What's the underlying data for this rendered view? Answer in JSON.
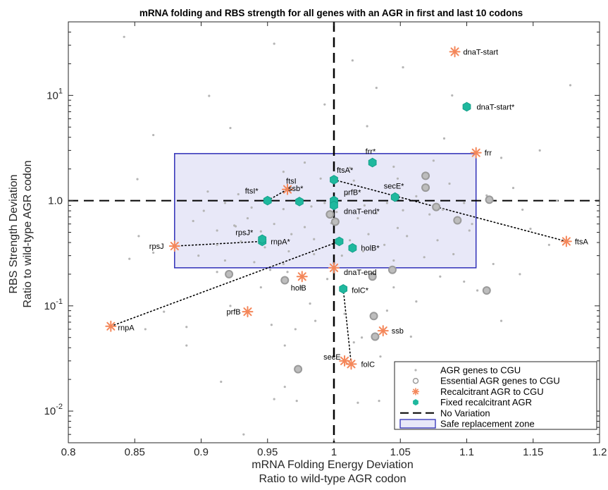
{
  "chart_data": {
    "type": "scatter",
    "title": "mRNA folding and RBS strength for all genes with an AGR in first and last 10 codons",
    "xlabel": [
      "mRNA Folding Energy Deviation",
      "Ratio to wild-type AGR codon"
    ],
    "ylabel": [
      "RBS Strength Deviation",
      "Ratio to wild-type AGR codon"
    ],
    "xlim": [
      0.8,
      1.2
    ],
    "ylim": [
      0.005,
      50
    ],
    "yscale": "log",
    "xticks": [
      0.8,
      0.85,
      0.9,
      0.95,
      1.0,
      1.05,
      1.1,
      1.15,
      1.2
    ],
    "xtick_labels": [
      "0.8",
      "0.85",
      "0.9",
      "0.95",
      "1",
      "1.05",
      "1.1",
      "1.15",
      "1.2"
    ],
    "yticks": [
      {
        "value": 0.01,
        "base": "10",
        "exp": "-2"
      },
      {
        "value": 0.1,
        "base": "10",
        "exp": "-1"
      },
      {
        "value": 1,
        "base": "1.0",
        "exp": ""
      },
      {
        "value": 10,
        "base": "10",
        "exp": "1"
      }
    ],
    "safe_zone": {
      "x": [
        0.88,
        1.107
      ],
      "y": [
        0.23,
        2.8
      ]
    },
    "reference_lines": {
      "x": 1.0,
      "y": 1.0
    },
    "colors": {
      "agr": "#b5b5b5",
      "essential": "#a6a6a6",
      "recalcitrant": "#f4875a",
      "fixed": "#1fb89e",
      "zone_fill": "#e8e8f8",
      "zone_edge": "#2f2fb8"
    },
    "series": [
      {
        "key": "agr",
        "name": "AGR genes to CGU",
        "marker": "dot",
        "points": [
          [
            0.842,
            36
          ],
          [
            0.955,
            31
          ],
          [
            0.906,
            9.9
          ],
          [
            0.922,
            4.9
          ],
          [
            0.864,
            4.2
          ],
          [
            1.025,
            5.1
          ],
          [
            0.852,
            1.6
          ],
          [
            0.853,
            0.46
          ],
          [
            0.846,
            0.28
          ],
          [
            0.864,
            0.32
          ],
          [
            0.872,
            0.088
          ],
          [
            0.858,
            0.06
          ],
          [
            0.889,
            0.063
          ],
          [
            0.915,
            0.019
          ],
          [
            0.889,
            0.042
          ],
          [
            0.932,
            0.006
          ],
          [
            0.926,
            0.57
          ],
          [
            0.922,
            0.1
          ],
          [
            0.963,
            0.017
          ],
          [
            0.955,
            0.013
          ],
          [
            0.972,
            0.0125
          ],
          [
            0.963,
            0.042
          ],
          [
            0.953,
            0.066
          ],
          [
            0.971,
            0.06
          ],
          [
            1.015,
            0.045
          ],
          [
            1.021,
            0.05
          ],
          [
            1.034,
            0.0125
          ],
          [
            1.018,
            0.012
          ],
          [
            1.047,
            0.019
          ],
          [
            1.035,
            0.033
          ],
          [
            1.058,
            0.051
          ],
          [
            1.062,
            0.022
          ],
          [
            1.047,
            0.012
          ],
          [
            1.072,
            0.0125
          ],
          [
            1.101,
            0.0125
          ],
          [
            1.128,
            0.01
          ],
          [
            1.098,
            0.17
          ],
          [
            1.126,
            0.072
          ],
          [
            1.104,
            0.6
          ],
          [
            1.135,
            1.32
          ],
          [
            1.148,
            0.54
          ],
          [
            1.162,
            0.38
          ],
          [
            1.178,
            12.5
          ],
          [
            1.126,
            2.55
          ],
          [
            1.155,
            3.0
          ],
          [
            1.089,
            10
          ],
          [
            1.052,
            18.5
          ],
          [
            1.014,
            21.5
          ],
          [
            1.032,
            11.8
          ],
          [
            0.993,
            8.2
          ],
          [
            1.083,
            3.9
          ],
          [
            1.075,
            2.4
          ],
          [
            1.045,
            2.1
          ],
          [
            1.012,
            2.05
          ],
          [
            0.978,
            2.3
          ],
          [
            0.962,
            1.88
          ],
          [
            0.99,
            1.62
          ],
          [
            1.015,
            1.55
          ],
          [
            1.048,
            1.62
          ],
          [
            1.087,
            1.45
          ],
          [
            1.062,
            1.1
          ],
          [
            1.04,
            0.95
          ],
          [
            1.01,
            1.15
          ],
          [
            0.993,
            0.95
          ],
          [
            0.983,
            0.88
          ],
          [
            0.962,
            0.83
          ],
          [
            0.938,
            0.86
          ],
          [
            0.918,
            0.95
          ],
          [
            0.902,
            0.8
          ],
          [
            0.894,
            0.64
          ],
          [
            0.912,
            0.52
          ],
          [
            0.935,
            0.68
          ],
          [
            0.955,
            0.6
          ],
          [
            0.978,
            0.56
          ],
          [
            0.998,
            0.61
          ],
          [
            1.018,
            0.68
          ],
          [
            1.032,
            0.76
          ],
          [
            1.052,
            0.81
          ],
          [
            1.072,
            0.74
          ],
          [
            1.092,
            0.62
          ],
          [
            1.102,
            0.52
          ],
          [
            1.078,
            0.42
          ],
          [
            1.055,
            0.46
          ],
          [
            1.038,
            0.38
          ],
          [
            1.022,
            0.33
          ],
          [
            1.006,
            0.3
          ],
          [
            0.985,
            0.31
          ],
          [
            0.966,
            0.33
          ],
          [
            0.948,
            0.36
          ],
          [
            0.93,
            0.41
          ],
          [
            0.912,
            0.38
          ],
          [
            0.898,
            0.3
          ],
          [
            0.918,
            0.27
          ],
          [
            0.94,
            0.26
          ],
          [
            0.962,
            0.25
          ],
          [
            0.985,
            0.43
          ],
          [
            1.045,
            0.27
          ],
          [
            1.068,
            0.29
          ],
          [
            1.09,
            0.31
          ],
          [
            1.12,
            0.25
          ],
          [
            1.14,
            0.2
          ],
          [
            1.108,
            0.14
          ],
          [
            1.012,
            0.42
          ],
          [
            1.026,
            0.48
          ],
          [
            1.048,
            0.55
          ],
          [
            0.968,
            0.48
          ],
          [
            0.945,
            0.51
          ],
          [
            0.925,
            0.58
          ],
          [
            1.002,
            0.78
          ],
          [
            1.023,
            0.9
          ],
          [
            0.972,
            1.0
          ],
          [
            0.952,
            1.05
          ],
          [
            0.928,
            1.15
          ],
          [
            0.905,
            1.22
          ],
          [
            1.098,
            0.95
          ],
          [
            1.082,
            0.82
          ],
          [
            1.115,
            1.12
          ],
          [
            1.142,
            0.82
          ],
          [
            1.168,
            1.0
          ],
          [
            0.995,
            0.18
          ],
          [
            0.975,
            0.15
          ],
          [
            1.045,
            0.15
          ],
          [
            1.062,
            0.11
          ],
          [
            0.945,
            0.15
          ],
          [
            1.08,
            0.19
          ],
          [
            0.952,
            0.22
          ],
          [
            1.008,
            0.084
          ],
          [
            0.986,
            0.072
          ],
          [
            1.04,
            0.09
          ],
          [
            0.982,
            0.105
          ],
          [
            0.912,
            0.21
          ],
          [
            0.965,
            0.21
          ]
        ]
      },
      {
        "key": "essential",
        "name": "Essential AGR genes to CGU",
        "marker": "circle",
        "points": [
          [
            1.069,
            1.72
          ],
          [
            1.069,
            1.33
          ],
          [
            1.117,
            1.02
          ],
          [
            1.077,
            0.87
          ],
          [
            1.093,
            0.65
          ],
          [
            1.001,
            0.63
          ],
          [
            0.997,
            0.74
          ],
          [
            1.115,
            0.14
          ],
          [
            1.044,
            0.22
          ],
          [
            0.921,
            0.2
          ],
          [
            0.963,
            0.175
          ],
          [
            1.029,
            0.19
          ],
          [
            1.03,
            0.08
          ],
          [
            1.031,
            0.051
          ],
          [
            0.973,
            0.025
          ]
        ]
      },
      {
        "key": "recalcitrant",
        "name": "Recalcitrant AGR to CGU",
        "marker": "asterisk",
        "points": [
          {
            "x": 1.091,
            "y": 26,
            "label": "dnaT-start",
            "dx": 12,
            "dy": 4
          },
          {
            "x": 1.107,
            "y": 2.85,
            "label": "frr",
            "dx": 12,
            "dy": 4
          },
          {
            "x": 0.965,
            "y": 1.28,
            "label": "ftsI",
            "dx": -2,
            "dy": -8
          },
          {
            "x": 1.175,
            "y": 0.41,
            "label": "ftsA",
            "dx": 12,
            "dy": 4
          },
          {
            "x": 0.88,
            "y": 0.37,
            "label": "rpsJ",
            "dx": -36,
            "dy": 4
          },
          {
            "x": 1.0,
            "y": 0.23,
            "label": "dnaT-end",
            "dx": 14,
            "dy": 10
          },
          {
            "x": 0.976,
            "y": 0.19,
            "label": "holB",
            "dx": -16,
            "dy": 20
          },
          {
            "x": 0.935,
            "y": 0.088,
            "label": "prfB",
            "dx": -30,
            "dy": 4
          },
          {
            "x": 0.832,
            "y": 0.064,
            "label": "rnpA",
            "dx": 10,
            "dy": 6
          },
          {
            "x": 1.037,
            "y": 0.058,
            "label": "ssb",
            "dx": 12,
            "dy": 4
          },
          {
            "x": 1.013,
            "y": 0.028,
            "label": "folC",
            "dx": 14,
            "dy": 4
          },
          {
            "x": 1.008,
            "y": 0.03,
            "label": "secE",
            "dx": -30,
            "dy": -2
          }
        ]
      },
      {
        "key": "fixed",
        "name": "Fixed recalcitrant AGR",
        "marker": "hexagon",
        "points": [
          {
            "x": 1.1,
            "y": 7.8,
            "label": "dnaT-start*",
            "dx": 14,
            "dy": 4
          },
          {
            "x": 1.029,
            "y": 2.3,
            "label": "frr*",
            "dx": -10,
            "dy": -12
          },
          {
            "x": 1.0,
            "y": 1.58,
            "label": "ftsA*",
            "dx": 4,
            "dy": -10
          },
          {
            "x": 1.046,
            "y": 1.08,
            "label": "secE*",
            "dx": -16,
            "dy": -12
          },
          {
            "x": 0.95,
            "y": 1.0,
            "label": "ftsI*",
            "dx": -32,
            "dy": -10
          },
          {
            "x": 0.974,
            "y": 0.98,
            "label": "ssb*",
            "dx": -16,
            "dy": -15
          },
          {
            "x": 1.0,
            "y": 1.0,
            "label": "prfB*",
            "dx": 14,
            "dy": -8
          },
          {
            "x": 1.0,
            "y": 0.9,
            "label": "dnaT-end*",
            "dx": 14,
            "dy": 12
          },
          {
            "x": 0.946,
            "y": 0.41,
            "label": "rnpA*",
            "dx": 12,
            "dy": 4
          },
          {
            "x": 0.946,
            "y": 0.43,
            "label": "rpsJ*",
            "dx": -38,
            "dy": -6
          },
          {
            "x": 1.004,
            "y": 0.41,
            "label": "",
            "dx": 0,
            "dy": 0
          },
          {
            "x": 1.014,
            "y": 0.355,
            "label": "holB*",
            "dx": 12,
            "dy": 4
          },
          {
            "x": 1.007,
            "y": 0.145,
            "label": "folC*",
            "dx": 12,
            "dy": 6
          }
        ]
      }
    ],
    "connectors": [
      [
        [
          1.0,
          1.58
        ],
        [
          1.175,
          0.41
        ]
      ],
      [
        [
          0.88,
          0.37
        ],
        [
          0.946,
          0.41
        ]
      ],
      [
        [
          0.832,
          0.064
        ],
        [
          1.004,
          0.41
        ]
      ],
      [
        [
          1.007,
          0.145
        ],
        [
          1.013,
          0.028
        ]
      ],
      [
        [
          0.95,
          1.0
        ],
        [
          0.965,
          1.28
        ]
      ]
    ],
    "legend": {
      "position": "bottom-right",
      "entries": [
        {
          "key": "agr",
          "label": "AGR genes to CGU"
        },
        {
          "key": "essential",
          "label": "Essential AGR genes to CGU"
        },
        {
          "key": "recalcitrant",
          "label": "Recalcitrant AGR to CGU"
        },
        {
          "key": "fixed",
          "label": "Fixed recalcitrant AGR"
        },
        {
          "key": "noVar",
          "label": "No Variation"
        },
        {
          "key": "zone",
          "label": "Safe replacement zone"
        }
      ]
    }
  }
}
